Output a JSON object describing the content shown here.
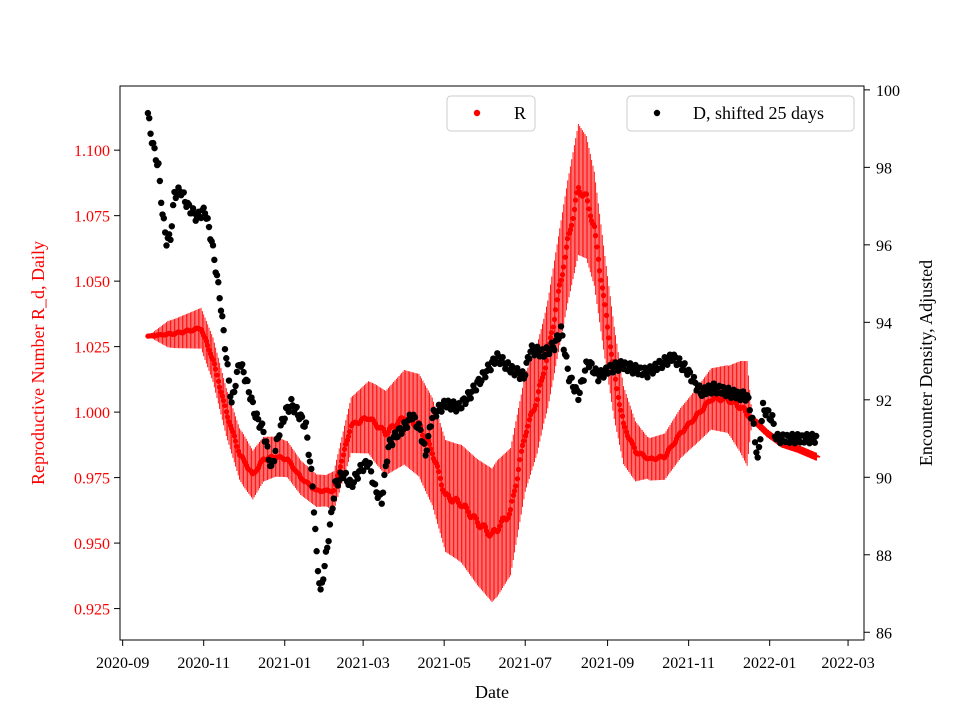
{
  "chart_data": {
    "type": "scatter",
    "xlabel": "Date",
    "ylabel_left": "Reproductive Number R_d, Daily",
    "ylabel_right": "Encounter Density, Adjusted",
    "x_range": [
      "2020-08-30",
      "2022-03-13"
    ],
    "x_ticks": [
      "2020-09",
      "2020-11",
      "2021-01",
      "2021-03",
      "2021-05",
      "2021-07",
      "2021-09",
      "2021-11",
      "2022-01",
      "2022-03"
    ],
    "y_left_range": [
      0.913,
      1.1245
    ],
    "y_left_ticks": [
      "0.925",
      "0.950",
      "0.975",
      "1.000",
      "1.025",
      "1.050",
      "1.075",
      "1.100"
    ],
    "y_right_range": [
      85.8,
      100.1
    ],
    "y_right_ticks": [
      "86",
      "88",
      "90",
      "92",
      "94",
      "96",
      "98",
      "100"
    ],
    "colors": {
      "R": "#ff0000",
      "D": "#000000",
      "left_axis": "#ff0000",
      "right_axis": "#000000"
    },
    "legend": {
      "R_label": "R",
      "D_label": "D, shifted 25 days"
    },
    "series": [
      {
        "name": "R",
        "axis": "left",
        "marker": "dot-with-errorbar",
        "tail_marker": "plus",
        "start": "2020-09-20",
        "end": "2022-02-05",
        "tail_start": "2021-12-20",
        "mean_knots": [
          [
            "2020-09-20",
            1.029
          ],
          [
            "2020-10-10",
            1.03
          ],
          [
            "2020-10-30",
            1.032
          ],
          [
            "2020-11-08",
            1.02
          ],
          [
            "2020-11-18",
            1.0
          ],
          [
            "2020-11-28",
            0.984
          ],
          [
            "2020-12-08",
            0.976
          ],
          [
            "2020-12-16",
            0.982
          ],
          [
            "2020-12-25",
            0.983
          ],
          [
            "2021-01-03",
            0.982
          ],
          [
            "2021-01-13",
            0.975
          ],
          [
            "2021-01-25",
            0.97
          ],
          [
            "2021-02-07",
            0.97
          ],
          [
            "2021-02-20",
            0.995
          ],
          [
            "2021-03-05",
            0.998
          ],
          [
            "2021-03-18",
            0.992
          ],
          [
            "2021-04-01",
            0.998
          ],
          [
            "2021-04-12",
            0.995
          ],
          [
            "2021-04-22",
            0.985
          ],
          [
            "2021-05-02",
            0.968
          ],
          [
            "2021-05-14",
            0.965
          ],
          [
            "2021-05-26",
            0.958
          ],
          [
            "2021-06-06",
            0.953
          ],
          [
            "2021-06-20",
            0.962
          ],
          [
            "2021-07-01",
            0.992
          ],
          [
            "2021-07-10",
            1.005
          ],
          [
            "2021-07-18",
            1.022
          ],
          [
            "2021-07-26",
            1.045
          ],
          [
            "2021-08-02",
            1.065
          ],
          [
            "2021-08-10",
            1.085
          ],
          [
            "2021-08-16",
            1.082
          ],
          [
            "2021-08-22",
            1.07
          ],
          [
            "2021-08-30",
            1.04
          ],
          [
            "2021-09-06",
            1.015
          ],
          [
            "2021-09-13",
            0.995
          ],
          [
            "2021-09-22",
            0.985
          ],
          [
            "2021-10-03",
            0.982
          ],
          [
            "2021-10-14",
            0.983
          ],
          [
            "2021-10-26",
            0.992
          ],
          [
            "2021-11-06",
            0.998
          ],
          [
            "2021-11-18",
            1.005
          ],
          [
            "2021-11-30",
            1.005
          ],
          [
            "2021-12-10",
            1.002
          ],
          [
            "2021-12-20",
            0.997
          ],
          [
            "2021-12-30",
            0.992
          ],
          [
            "2022-01-10",
            0.988
          ],
          [
            "2022-01-22",
            0.986
          ],
          [
            "2022-02-05",
            0.983
          ]
        ],
        "error_knots": [
          [
            "2020-09-20",
            0.0
          ],
          [
            "2020-10-05",
            0.005
          ],
          [
            "2020-11-01",
            0.008
          ],
          [
            "2020-12-01",
            0.01
          ],
          [
            "2021-01-01",
            0.007
          ],
          [
            "2021-02-01",
            0.006
          ],
          [
            "2021-03-10",
            0.015
          ],
          [
            "2021-04-15",
            0.02
          ],
          [
            "2021-05-10",
            0.022
          ],
          [
            "2021-06-10",
            0.026
          ],
          [
            "2021-07-15",
            0.02
          ],
          [
            "2021-08-10",
            0.025
          ],
          [
            "2021-09-05",
            0.018
          ],
          [
            "2021-10-01",
            0.008
          ],
          [
            "2021-11-01",
            0.01
          ],
          [
            "2021-12-01",
            0.013
          ],
          [
            "2021-12-15",
            0.02
          ],
          [
            "2021-12-19",
            0.0
          ],
          [
            "2022-02-05",
            0.0
          ]
        ]
      },
      {
        "name": "D, shifted 25 days",
        "axis": "right",
        "marker": "dot",
        "start": "2020-09-20",
        "end": "2022-02-05",
        "knots": [
          [
            "2020-09-20",
            99.4
          ],
          [
            "2020-09-22",
            98.9
          ],
          [
            "2020-09-25",
            98.4
          ],
          [
            "2020-09-28",
            98.0
          ],
          [
            "2020-10-01",
            96.8
          ],
          [
            "2020-10-04",
            96.1
          ],
          [
            "2020-10-07",
            96.2
          ],
          [
            "2020-10-10",
            97.3
          ],
          [
            "2020-10-15",
            97.4
          ],
          [
            "2020-10-20",
            97.0
          ],
          [
            "2020-10-27",
            96.7
          ],
          [
            "2020-11-02",
            96.9
          ],
          [
            "2020-11-07",
            96.1
          ],
          [
            "2020-11-13",
            94.7
          ],
          [
            "2020-11-18",
            93.1
          ],
          [
            "2020-11-22",
            91.9
          ],
          [
            "2020-11-28",
            93.0
          ],
          [
            "2020-12-03",
            92.5
          ],
          [
            "2020-12-10",
            91.6
          ],
          [
            "2020-12-16",
            91.2
          ],
          [
            "2020-12-22",
            90.2
          ],
          [
            "2020-12-28",
            91.2
          ],
          [
            "2021-01-02",
            91.7
          ],
          [
            "2021-01-06",
            91.9
          ],
          [
            "2021-01-12",
            91.6
          ],
          [
            "2021-01-17",
            91.3
          ],
          [
            "2021-01-22",
            89.8
          ],
          [
            "2021-01-25",
            88.0
          ],
          [
            "2021-01-28",
            87.0
          ],
          [
            "2021-02-02",
            88.2
          ],
          [
            "2021-02-08",
            89.8
          ],
          [
            "2021-02-14",
            90.1
          ],
          [
            "2021-02-20",
            89.8
          ],
          [
            "2021-02-27",
            90.2
          ],
          [
            "2021-03-05",
            90.4
          ],
          [
            "2021-03-10",
            89.7
          ],
          [
            "2021-03-15",
            89.4
          ],
          [
            "2021-03-20",
            90.8
          ],
          [
            "2021-03-26",
            91.1
          ],
          [
            "2021-04-01",
            91.3
          ],
          [
            "2021-04-07",
            91.6
          ],
          [
            "2021-04-13",
            91.2
          ],
          [
            "2021-04-17",
            90.6
          ],
          [
            "2021-04-22",
            91.6
          ],
          [
            "2021-05-02",
            91.9
          ],
          [
            "2021-05-12",
            91.8
          ],
          [
            "2021-05-22",
            92.2
          ],
          [
            "2021-06-01",
            92.7
          ],
          [
            "2021-06-10",
            93.1
          ],
          [
            "2021-06-20",
            92.8
          ],
          [
            "2021-06-30",
            92.6
          ],
          [
            "2021-07-05",
            93.3
          ],
          [
            "2021-07-15",
            93.2
          ],
          [
            "2021-07-23",
            93.4
          ],
          [
            "2021-07-28",
            93.8
          ],
          [
            "2021-08-03",
            92.6
          ],
          [
            "2021-08-10",
            92.1
          ],
          [
            "2021-08-17",
            93.0
          ],
          [
            "2021-08-25",
            92.6
          ],
          [
            "2021-09-03",
            92.8
          ],
          [
            "2021-09-12",
            92.9
          ],
          [
            "2021-09-20",
            92.8
          ],
          [
            "2021-10-01",
            92.7
          ],
          [
            "2021-10-10",
            92.9
          ],
          [
            "2021-10-20",
            93.1
          ],
          [
            "2021-10-30",
            92.8
          ],
          [
            "2021-11-10",
            92.2
          ],
          [
            "2021-11-20",
            92.3
          ],
          [
            "2021-11-30",
            92.2
          ],
          [
            "2021-12-10",
            92.1
          ],
          [
            "2021-12-15",
            92.1
          ],
          [
            "2021-12-20",
            91.3
          ],
          [
            "2021-12-23",
            90.4
          ],
          [
            "2021-12-27",
            91.8
          ],
          [
            "2022-01-03",
            91.5
          ],
          [
            "2022-01-06",
            91.0
          ],
          [
            "2022-02-05",
            91.0
          ]
        ]
      }
    ]
  }
}
